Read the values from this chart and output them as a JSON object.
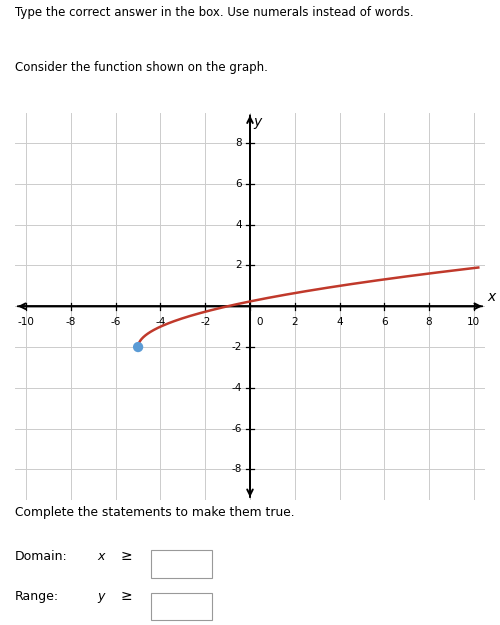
{
  "title_line1": "Type the correct answer in the box. Use numerals instead of words.",
  "title_line2": "Consider the function shown on the graph.",
  "complete_text": "Complete the statements to make them true.",
  "domain_label": "Domain:",
  "domain_symbol": "x",
  "range_label": "Range:",
  "range_symbol": "y",
  "geq_symbol": "≥",
  "x_start": -5,
  "y_start": -2,
  "curve_color": "#c0392b",
  "point_color": "#5b9bd5",
  "point_size": 55,
  "x_axis_range": [
    -10.5,
    10.5
  ],
  "y_axis_range": [
    -9.5,
    9.5
  ],
  "x_ticks": [
    -10,
    -8,
    -6,
    -4,
    -2,
    2,
    4,
    6,
    8,
    10
  ],
  "y_ticks": [
    -8,
    -6,
    -4,
    -2,
    2,
    4,
    6,
    8
  ],
  "grid_color": "#cccccc",
  "background_color": "#ffffff",
  "fig_width": 5.0,
  "fig_height": 6.25,
  "curve_linewidth": 1.8
}
